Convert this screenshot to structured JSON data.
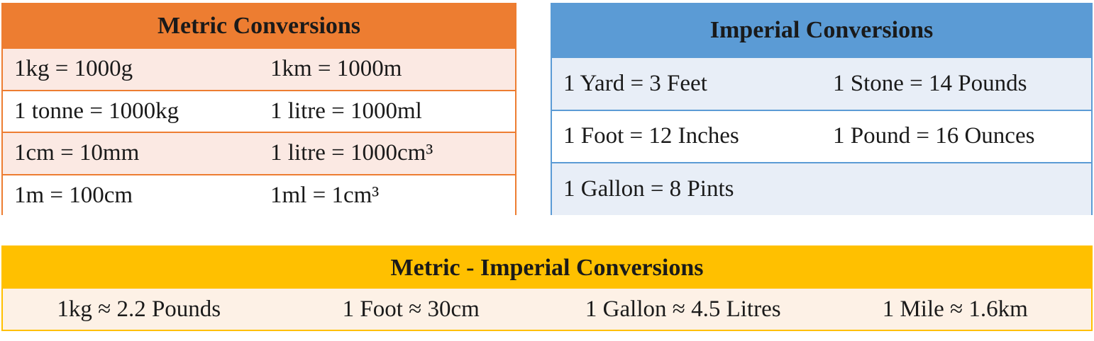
{
  "metric": {
    "title": "Metric Conversions",
    "rows": [
      [
        "1kg = 1000g",
        "1km = 1000m"
      ],
      [
        "1 tonne = 1000kg",
        "1 litre = 1000ml"
      ],
      [
        "1cm = 10mm",
        "1 litre = 1000cm³"
      ],
      [
        "1m = 100cm",
        "1ml = 1cm³"
      ]
    ]
  },
  "imperial": {
    "title": "Imperial Conversions",
    "rows": [
      [
        "1 Yard = 3 Feet",
        "1 Stone = 14 Pounds"
      ],
      [
        "1 Foot = 12 Inches",
        "1 Pound = 16 Ounces"
      ],
      [
        "1 Gallon = 8 Pints"
      ]
    ]
  },
  "metric_imperial": {
    "title": "Metric - Imperial Conversions",
    "items": [
      "1kg ≈ 2.2 Pounds",
      "1 Foot ≈ 30cm",
      "1 Gallon ≈ 4.5 Litres",
      "1 Mile ≈ 1.6km"
    ]
  }
}
